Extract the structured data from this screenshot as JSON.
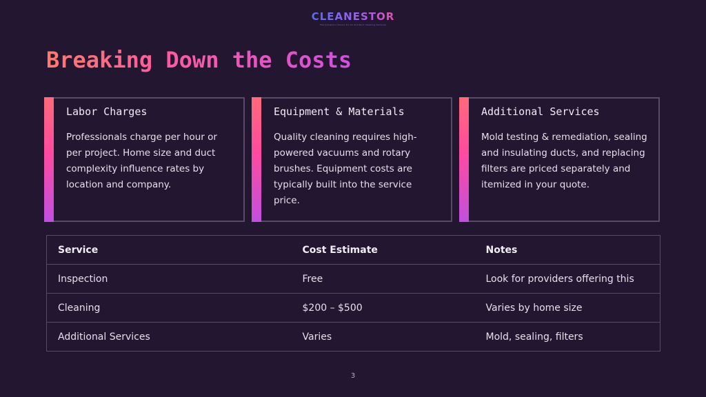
{
  "logo": {
    "text": "CLEANESTOR",
    "tagline": "The Industry's Choice for Air and Duct Cleaning Services"
  },
  "title": "Breaking Down the Costs",
  "cards": [
    {
      "heading": "Labor Charges",
      "body": "Professionals charge per hour or per project. Home size and duct complexity influence rates by location and company."
    },
    {
      "heading": "Equipment & Materials",
      "body": "Quality cleaning requires high-powered vacuums and rotary brushes. Equipment costs are typically built into the service price."
    },
    {
      "heading": "Additional Services",
      "body": "Mold testing & remediation, sealing and insulating ducts, and replacing filters are priced separately and itemized in your quote."
    }
  ],
  "table": {
    "headers": [
      "Service",
      "Cost Estimate",
      "Notes"
    ],
    "rows": [
      [
        "Inspection",
        "Free",
        "Look for providers offering this"
      ],
      [
        "Cleaning",
        "$200 – $500",
        "Varies by home size"
      ],
      [
        "Additional Services",
        "Varies",
        "Mold, sealing, filters"
      ]
    ]
  },
  "page_number": "3",
  "colors": {
    "background": "#231631",
    "accent_start": "#ff7a6a",
    "accent_mid": "#ff5aa0",
    "accent_end": "#d050e0",
    "border": "#5a4a6a"
  }
}
